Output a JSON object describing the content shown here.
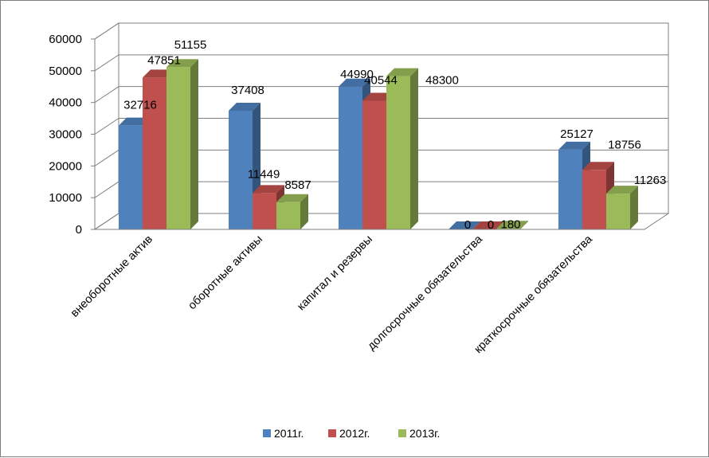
{
  "chart_data": {
    "type": "bar",
    "style": "3d-clustered-column",
    "categories": [
      "внеоборотные актив",
      "оборотные активы",
      "капитал и резервы",
      "долгосрочные обязательства",
      "краткосрочные обязательства"
    ],
    "series": [
      {
        "name": "2011г.",
        "color": "#4f81bd",
        "values": [
          32716,
          37408,
          44990,
          0,
          25127
        ]
      },
      {
        "name": "2012г.",
        "color": "#c0504d",
        "values": [
          47851,
          11449,
          40544,
          0,
          18756
        ]
      },
      {
        "name": "2013г.",
        "color": "#9bbb59",
        "values": [
          51155,
          8587,
          48300,
          180,
          11263
        ]
      }
    ],
    "ylim": [
      0,
      60000
    ],
    "yticks": [
      "0",
      "10000",
      "20000",
      "30000",
      "40000",
      "50000",
      "60000"
    ],
    "grid": true,
    "legend_position": "bottom"
  }
}
